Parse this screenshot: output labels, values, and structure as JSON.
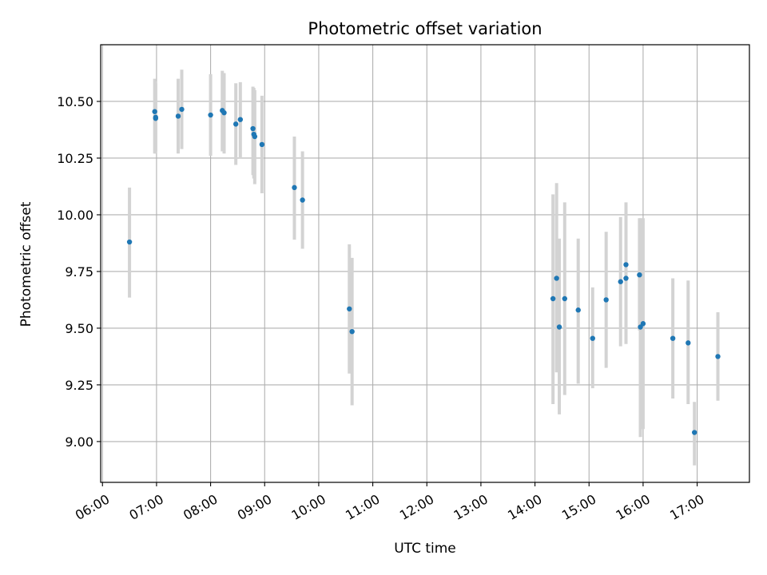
{
  "chart_data": {
    "type": "scatter",
    "title": "Photometric offset variation",
    "xlabel": "UTC time",
    "ylabel": "Photometric offset",
    "grid": true,
    "legend": "none",
    "x_axis": {
      "kind": "time",
      "range": [
        "05:58",
        "17:58"
      ],
      "ticks": [
        "06:00",
        "07:00",
        "08:00",
        "09:00",
        "10:00",
        "11:00",
        "12:00",
        "13:00",
        "14:00",
        "15:00",
        "16:00",
        "17:00"
      ]
    },
    "y_axis": {
      "range": [
        8.82,
        10.75
      ],
      "ticks": [
        9.0,
        9.25,
        9.5,
        9.75,
        10.0,
        10.25,
        10.5
      ],
      "tick_labels": [
        "9.00",
        "9.25",
        "9.50",
        "9.75",
        "10.00",
        "10.25",
        "10.50"
      ]
    },
    "colors": {
      "point": "#1f77b4",
      "errorbar": "#d3d3d3",
      "grid": "#b0b0b0",
      "frame": "#000000"
    },
    "points": [
      {
        "t": "06:30",
        "y": 9.88,
        "lo": 9.635,
        "hi": 10.12
      },
      {
        "t": "06:58",
        "y": 10.455,
        "lo": 10.27,
        "hi": 10.6
      },
      {
        "t": "06:59",
        "y": 10.43,
        "lo": 10.27,
        "hi": 10.59
      },
      {
        "t": "06:59",
        "y": 10.425,
        "lo": 10.28,
        "hi": 10.58
      },
      {
        "t": "07:24",
        "y": 10.435,
        "lo": 10.27,
        "hi": 10.6
      },
      {
        "t": "07:28",
        "y": 10.465,
        "lo": 10.29,
        "hi": 10.64
      },
      {
        "t": "08:00",
        "y": 10.44,
        "lo": 10.26,
        "hi": 10.62
      },
      {
        "t": "08:13",
        "y": 10.46,
        "lo": 10.28,
        "hi": 10.635
      },
      {
        "t": "08:15",
        "y": 10.45,
        "lo": 10.27,
        "hi": 10.625
      },
      {
        "t": "08:28",
        "y": 10.4,
        "lo": 10.22,
        "hi": 10.58
      },
      {
        "t": "08:33",
        "y": 10.42,
        "lo": 10.25,
        "hi": 10.585
      },
      {
        "t": "08:47",
        "y": 10.38,
        "lo": 10.175,
        "hi": 10.565
      },
      {
        "t": "08:48",
        "y": 10.355,
        "lo": 10.16,
        "hi": 10.56
      },
      {
        "t": "08:49",
        "y": 10.345,
        "lo": 10.135,
        "hi": 10.55
      },
      {
        "t": "08:57",
        "y": 10.31,
        "lo": 10.095,
        "hi": 10.525
      },
      {
        "t": "09:33",
        "y": 10.12,
        "lo": 9.89,
        "hi": 10.345
      },
      {
        "t": "09:42",
        "y": 10.065,
        "lo": 9.85,
        "hi": 10.28
      },
      {
        "t": "10:34",
        "y": 9.585,
        "lo": 9.3,
        "hi": 9.87
      },
      {
        "t": "10:37",
        "y": 9.485,
        "lo": 9.16,
        "hi": 9.81
      },
      {
        "t": "14:20",
        "y": 9.63,
        "lo": 9.165,
        "hi": 10.09
      },
      {
        "t": "14:24",
        "y": 9.72,
        "lo": 9.305,
        "hi": 10.14
      },
      {
        "t": "14:27",
        "y": 9.505,
        "lo": 9.12,
        "hi": 9.895
      },
      {
        "t": "14:33",
        "y": 9.63,
        "lo": 9.205,
        "hi": 10.055
      },
      {
        "t": "14:48",
        "y": 9.58,
        "lo": 9.255,
        "hi": 9.895
      },
      {
        "t": "15:04",
        "y": 9.455,
        "lo": 9.235,
        "hi": 9.68
      },
      {
        "t": "15:19",
        "y": 9.625,
        "lo": 9.325,
        "hi": 9.925
      },
      {
        "t": "15:35",
        "y": 9.705,
        "lo": 9.42,
        "hi": 9.99
      },
      {
        "t": "15:41",
        "y": 9.78,
        "lo": 9.51,
        "hi": 10.055
      },
      {
        "t": "15:41",
        "y": 9.72,
        "lo": 9.43,
        "hi": 10.01
      },
      {
        "t": "15:56",
        "y": 9.735,
        "lo": 9.49,
        "hi": 9.985
      },
      {
        "t": "15:57",
        "y": 9.505,
        "lo": 9.02,
        "hi": 9.985
      },
      {
        "t": "16:00",
        "y": 9.52,
        "lo": 9.055,
        "hi": 9.985
      },
      {
        "t": "16:33",
        "y": 9.455,
        "lo": 9.19,
        "hi": 9.72
      },
      {
        "t": "16:50",
        "y": 9.435,
        "lo": 9.165,
        "hi": 9.71
      },
      {
        "t": "16:57",
        "y": 9.04,
        "lo": 8.895,
        "hi": 9.175
      },
      {
        "t": "17:23",
        "y": 9.375,
        "lo": 9.18,
        "hi": 9.57
      }
    ]
  }
}
